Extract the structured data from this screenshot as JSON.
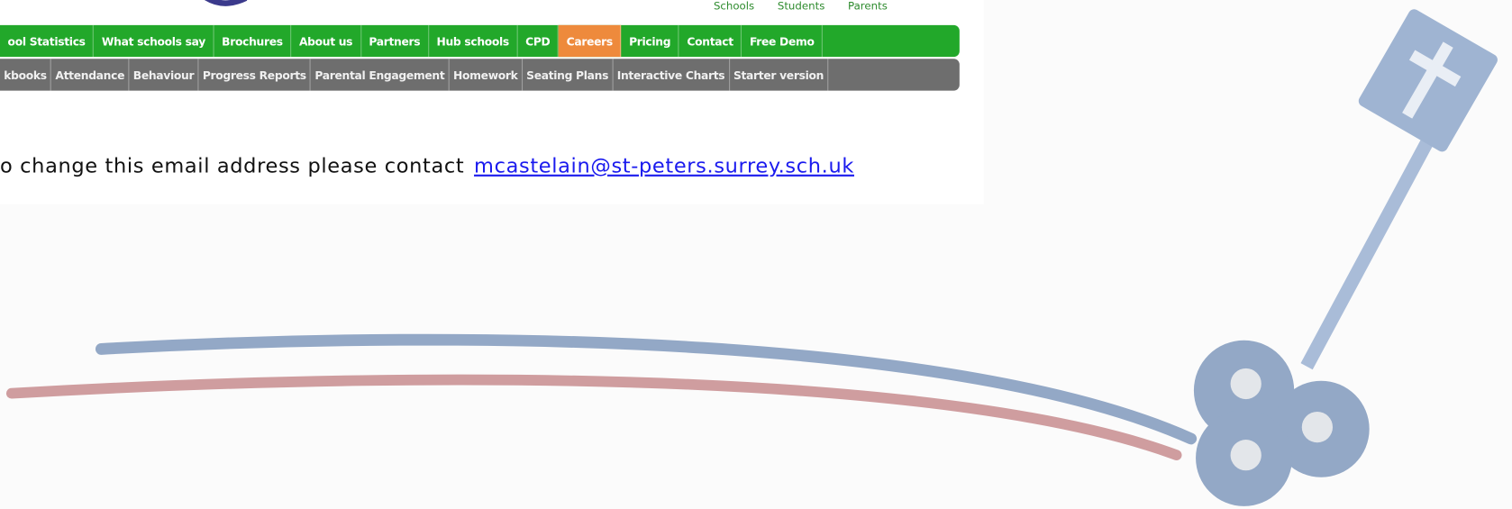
{
  "header": {
    "top_links": [
      "Schools",
      "Students",
      "Parents"
    ]
  },
  "nav": {
    "primary": [
      "ool Statistics",
      "What schools say",
      "Brochures",
      "About us",
      "Partners",
      "Hub schools",
      "CPD",
      "Careers",
      "Pricing",
      "Contact",
      "Free Demo"
    ],
    "active": "Careers",
    "secondary": [
      "kbooks",
      "Attendance",
      "Behaviour",
      "Progress Reports",
      "Parental Engagement",
      "Homework",
      "Seating Plans",
      "Interactive Charts",
      "Starter version"
    ]
  },
  "message": {
    "text": "o change this email address please contact",
    "email": "mcastelain@st-peters.surrey.sch.uk"
  }
}
